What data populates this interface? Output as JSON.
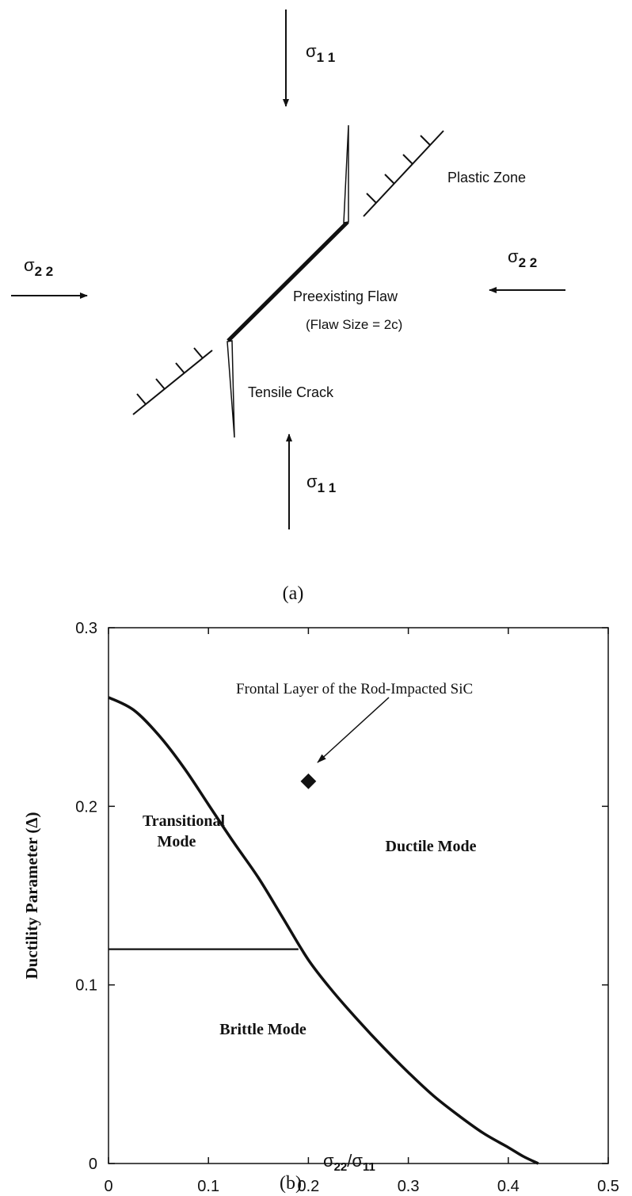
{
  "diagram": {
    "sigma11_top": "σ",
    "sigma11_top_sub": "1 1",
    "sigma11_bottom": "σ",
    "sigma11_bottom_sub": "1 1",
    "sigma22_left": "σ",
    "sigma22_left_sub": "2 2",
    "sigma22_right": "σ",
    "sigma22_right_sub": "2 2",
    "plastic_zone_label": "Plastic Zone",
    "flaw_label": "Preexisting Flaw",
    "flaw_size_label": "(Flaw Size = 2c)",
    "tensile_crack_label": "Tensile Crack",
    "caption": "(a)"
  },
  "chart_caption": "(b)",
  "chart_data": {
    "type": "line",
    "title": "",
    "xlabel_main": "σ",
    "xlabel_sub1": "22",
    "xlabel_mid": "/σ",
    "xlabel_sub2": "11",
    "ylabel": "Ductility Parameter (Δ)",
    "xlim": [
      0,
      0.5
    ],
    "ylim": [
      0,
      0.3
    ],
    "x_ticks": [
      "0",
      "0.1",
      "0.2",
      "0.3",
      "0.4",
      "0.5"
    ],
    "y_ticks": [
      "0",
      "0.1",
      "0.2",
      "0.3"
    ],
    "series": [
      {
        "x": [
          0,
          0.025,
          0.05,
          0.075,
          0.1,
          0.125,
          0.15,
          0.175,
          0.2,
          0.225,
          0.25,
          0.275,
          0.3,
          0.325,
          0.35,
          0.375,
          0.4,
          0.415,
          0.43
        ],
        "values": [
          0.261,
          0.254,
          0.24,
          0.222,
          0.201,
          0.18,
          0.16,
          0.137,
          0.114,
          0.096,
          0.08,
          0.065,
          0.051,
          0.038,
          0.027,
          0.017,
          0.009,
          0.004,
          0.0
        ]
      },
      {
        "x": [
          0,
          0.19
        ],
        "values": [
          0.12,
          0.12
        ]
      }
    ],
    "point": {
      "x": 0.2,
      "y": 0.214
    },
    "annotations": {
      "frontal_layer": "Frontal Layer of the Rod-Impacted SiC",
      "transitional_1": "Transitional",
      "transitional_2": "Mode",
      "ductile": "Ductile Mode",
      "brittle": "Brittle Mode"
    }
  }
}
